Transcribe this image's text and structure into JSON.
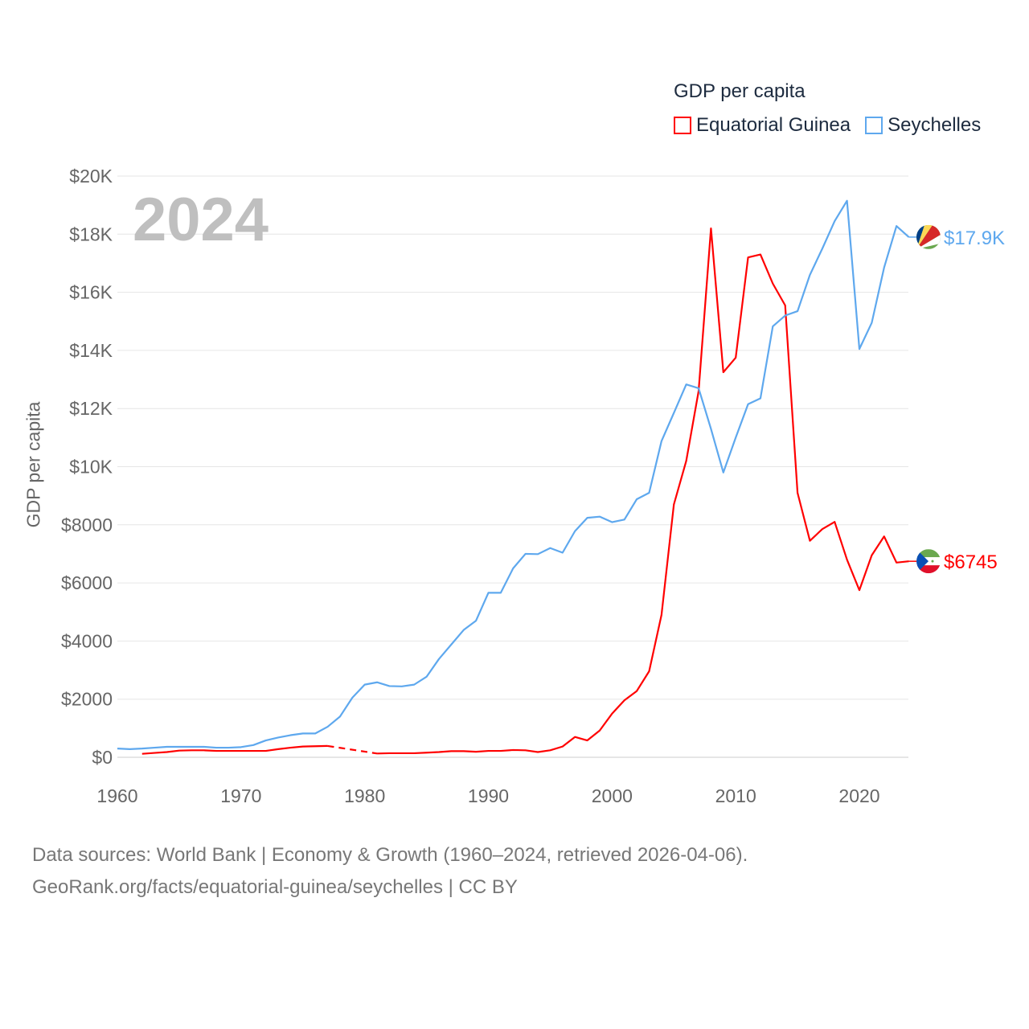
{
  "chart_data": {
    "type": "line",
    "title": "GDP per capita",
    "year_label": "2024",
    "ylabel": "GDP per capita",
    "xlabel": "",
    "xlim": [
      1960,
      2024
    ],
    "ylim": [
      0,
      20000
    ],
    "x_ticks": [
      "1960",
      "1970",
      "1980",
      "1990",
      "2000",
      "2010",
      "2020"
    ],
    "y_ticks": [
      {
        "value": 0,
        "label": "$0"
      },
      {
        "value": 2000,
        "label": "$2000"
      },
      {
        "value": 4000,
        "label": "$4000"
      },
      {
        "value": 6000,
        "label": "$6000"
      },
      {
        "value": 8000,
        "label": "$8000"
      },
      {
        "value": 10000,
        "label": "$10K"
      },
      {
        "value": 12000,
        "label": "$12K"
      },
      {
        "value": 14000,
        "label": "$14K"
      },
      {
        "value": 16000,
        "label": "$16K"
      },
      {
        "value": 18000,
        "label": "$18K"
      },
      {
        "value": 20000,
        "label": "$20K"
      }
    ],
    "grid": true,
    "legend_position": "top-right",
    "series": [
      {
        "name": "Equatorial Guinea",
        "color": "#ff0000",
        "end_label": "$6745",
        "flag": "equatorial-guinea-flag",
        "start_year": 1962,
        "values": [
          120,
          150,
          180,
          230,
          240,
          240,
          220,
          220,
          220,
          220,
          220,
          280,
          330,
          370,
          380,
          390,
          null,
          null,
          null,
          130,
          140,
          140,
          140,
          160,
          180,
          210,
          210,
          190,
          220,
          220,
          250,
          240,
          180,
          240,
          370,
          700,
          580,
          920,
          1500,
          1960,
          2280,
          2960,
          4900,
          8700,
          10200,
          12600,
          18200,
          13250,
          13750,
          17200,
          17300,
          16300,
          15550,
          9100,
          7450,
          7850,
          8100,
          6800,
          5750,
          6950,
          7600,
          6700,
          6745
        ]
      },
      {
        "name": "Seychelles",
        "color": "#5ea8ee",
        "end_label": "$17.9K",
        "flag": "seychelles-flag",
        "start_year": 1960,
        "values": [
          300,
          280,
          300,
          330,
          360,
          360,
          360,
          360,
          330,
          330,
          350,
          420,
          580,
          680,
          760,
          820,
          820,
          1050,
          1400,
          2050,
          2500,
          2580,
          2450,
          2440,
          2500,
          2770,
          3380,
          3880,
          4380,
          4700,
          5660,
          5660,
          6500,
          7000,
          6990,
          7200,
          7040,
          7780,
          8240,
          8280,
          8090,
          8180,
          8880,
          9100,
          10880,
          11850,
          12830,
          12700,
          11300,
          9800,
          11000,
          12150,
          12350,
          14830,
          15200,
          15350,
          16600,
          17500,
          18450,
          19150,
          14050,
          14950,
          16850,
          18280,
          17900
        ]
      }
    ]
  },
  "footer": {
    "line1": "Data sources: World Bank | Economy & Growth (1960–2024, retrieved 2026-04-06).",
    "line2": "GeoRank.org/facts/equatorial-guinea/seychelles | CC BY"
  }
}
